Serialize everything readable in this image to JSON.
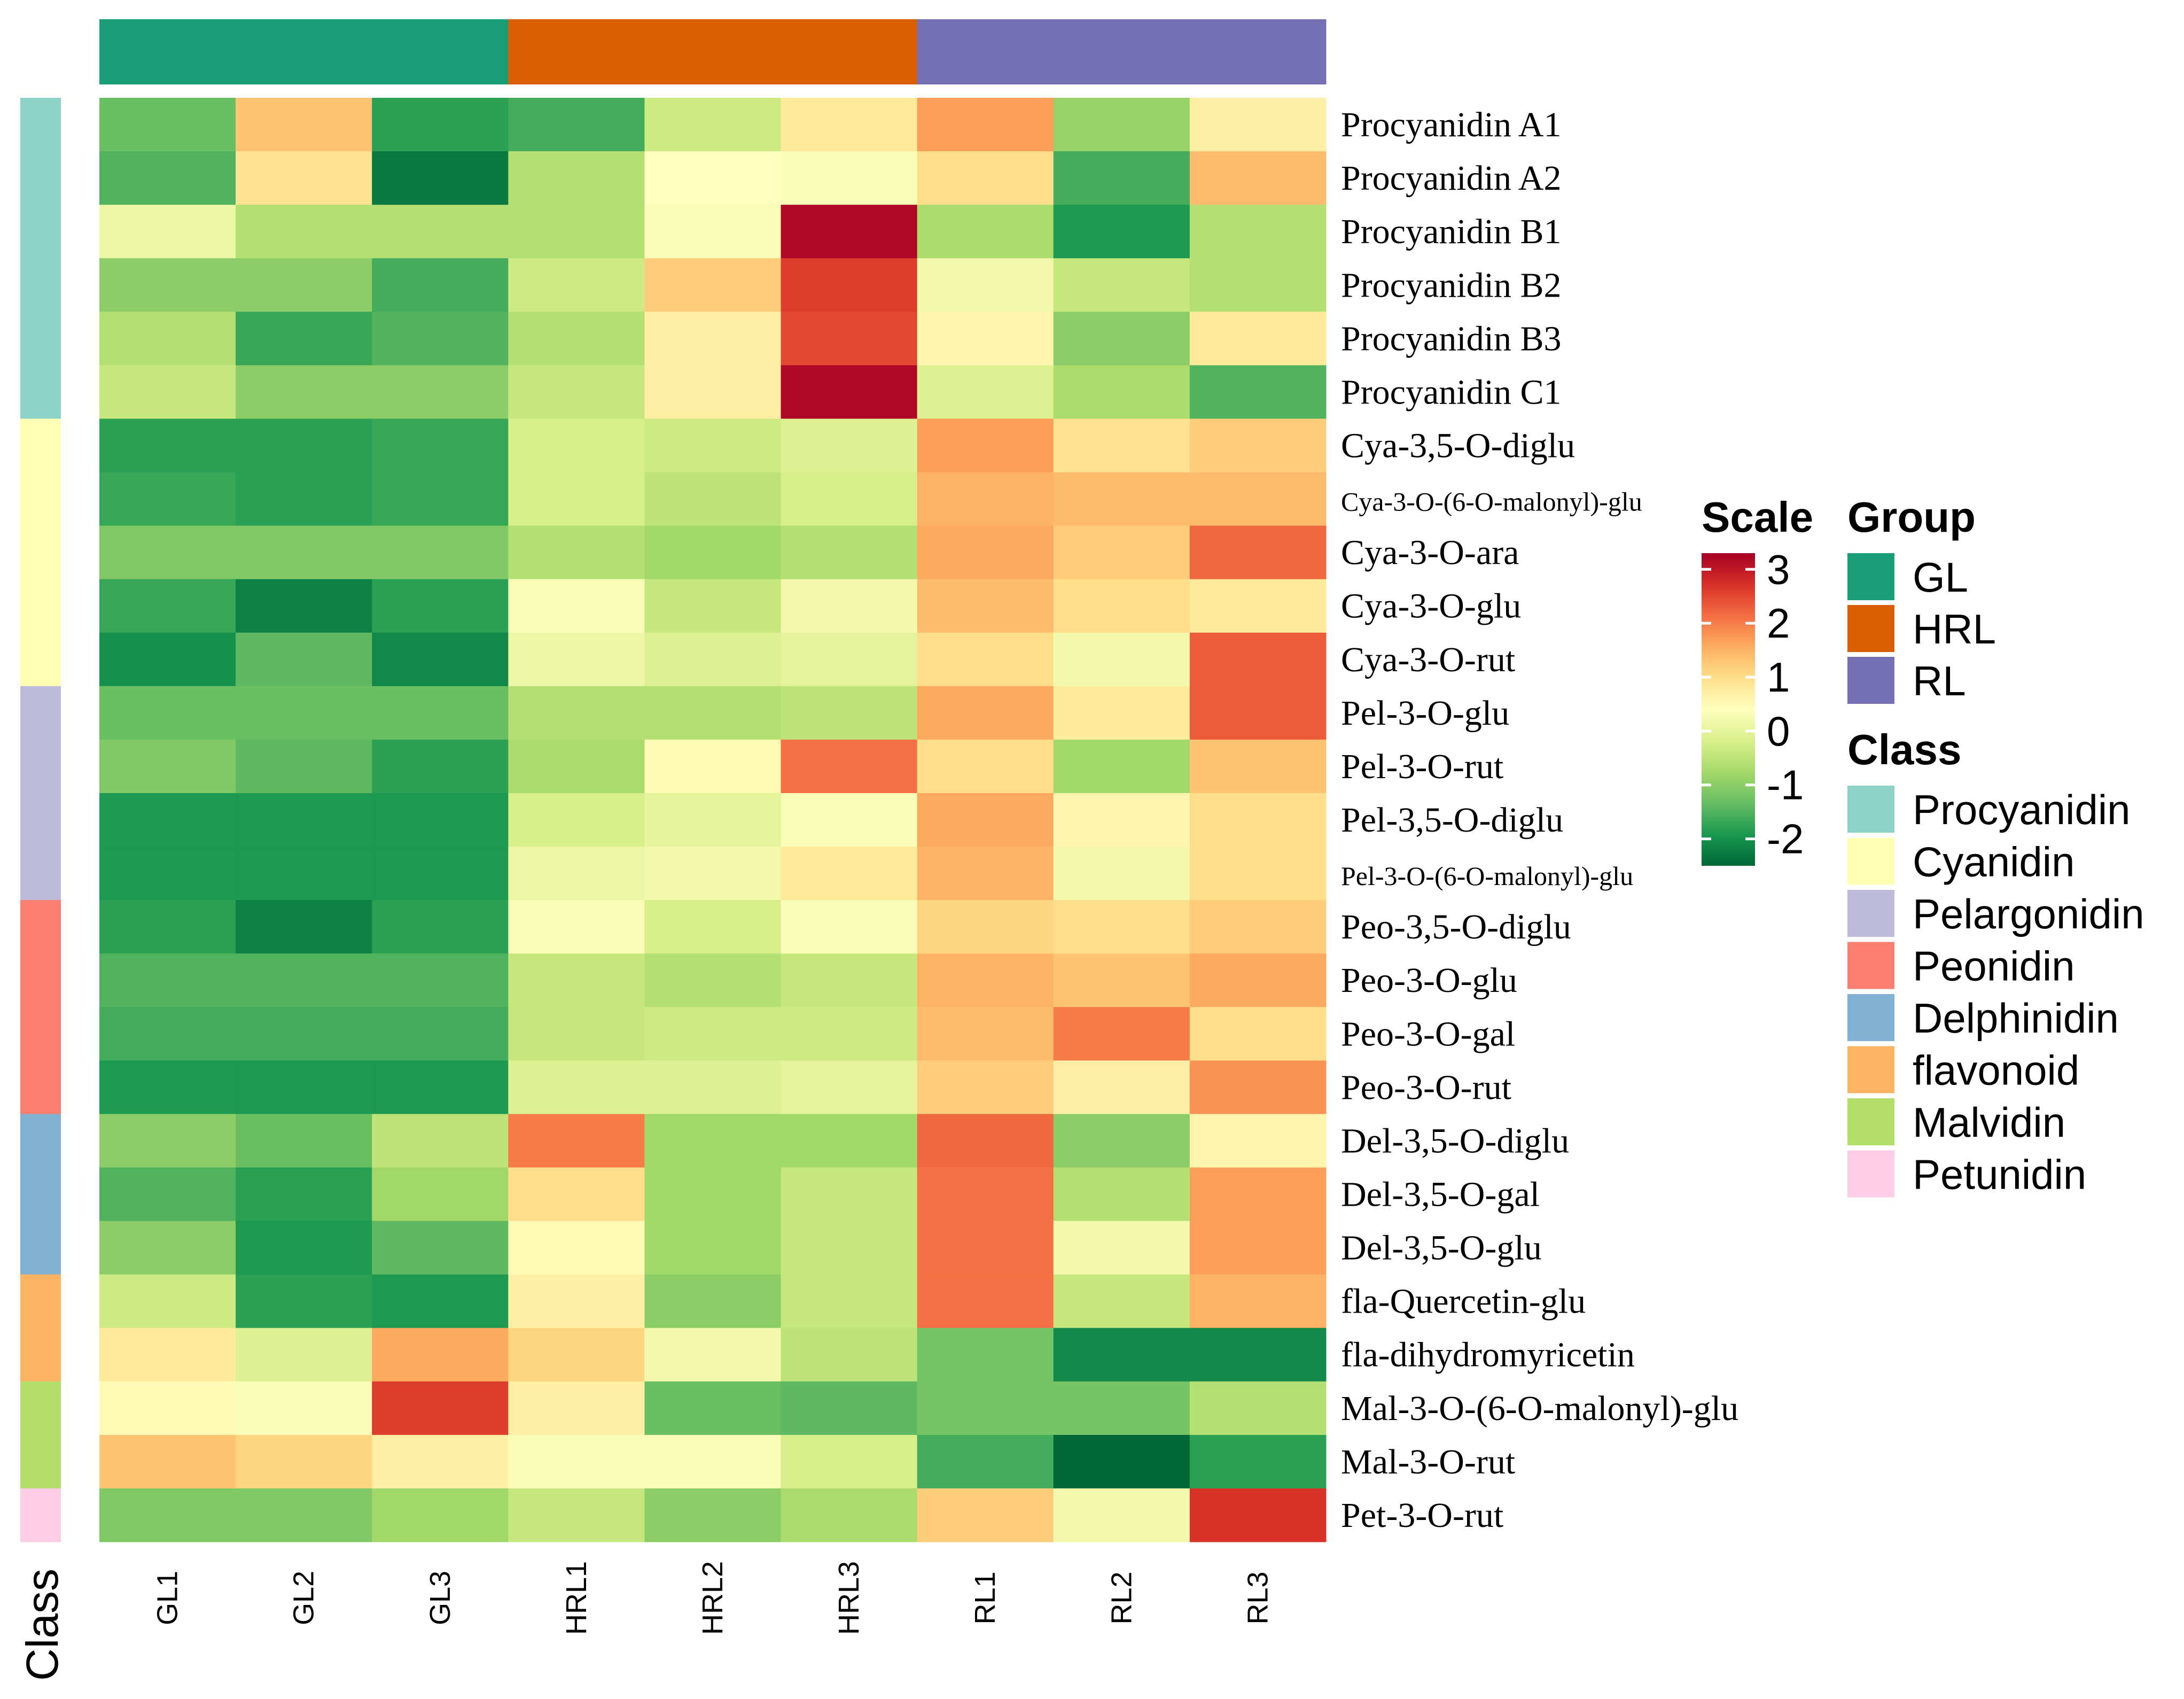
{
  "chart_data": {
    "type": "heatmap",
    "columns": [
      "GL1",
      "GL2",
      "GL3",
      "HRL1",
      "HRL2",
      "HRL3",
      "RL1",
      "RL2",
      "RL3"
    ],
    "column_groups": [
      "GL",
      "GL",
      "GL",
      "HRL",
      "HRL",
      "HRL",
      "RL",
      "RL",
      "RL"
    ],
    "rows": [
      {
        "label": "Procyanidin A1",
        "class": "Procyanidin",
        "values": [
          -1.3,
          1.3,
          -1.8,
          -1.6,
          -0.3,
          0.8,
          1.7,
          -0.9,
          0.7
        ]
      },
      {
        "label": "Procyanidin A2",
        "class": "Procyanidin",
        "values": [
          -1.5,
          0.9,
          -2.3,
          -0.6,
          0.4,
          0.3,
          1.0,
          -1.6,
          1.4
        ]
      },
      {
        "label": "Procyanidin B1",
        "class": "Procyanidin",
        "values": [
          0.1,
          -0.6,
          -0.6,
          -0.6,
          0.3,
          3.2,
          -0.7,
          -1.9,
          -0.6
        ]
      },
      {
        "label": "Procyanidin B2",
        "class": "Procyanidin",
        "values": [
          -1.0,
          -1.0,
          -1.6,
          -0.3,
          1.2,
          2.6,
          0.2,
          -0.4,
          -0.6
        ]
      },
      {
        "label": "Procyanidin B3",
        "class": "Procyanidin",
        "values": [
          -0.6,
          -1.7,
          -1.5,
          -0.6,
          0.7,
          2.5,
          0.6,
          -1.0,
          0.8
        ]
      },
      {
        "label": "Procyanidin C1",
        "class": "Procyanidin",
        "values": [
          -0.4,
          -1.0,
          -1.0,
          -0.4,
          0.7,
          3.2,
          -0.1,
          -0.7,
          -1.5
        ]
      },
      {
        "label": "Cya-3,5-O-diglu",
        "class": "Cyanidin",
        "values": [
          -1.8,
          -1.8,
          -1.7,
          -0.2,
          -0.3,
          -0.1,
          1.7,
          0.9,
          1.2
        ]
      },
      {
        "label": "Cya-3-O-(6-O-malonyl)-glu",
        "class": "Cyanidin",
        "values": [
          -1.7,
          -1.8,
          -1.7,
          -0.2,
          -0.5,
          -0.2,
          1.5,
          1.4,
          1.4
        ]
      },
      {
        "label": "Cya-3-O-ara",
        "class": "Cyanidin",
        "values": [
          -1.1,
          -1.1,
          -1.1,
          -0.6,
          -0.8,
          -0.6,
          1.6,
          1.2,
          2.2
        ]
      },
      {
        "label": "Cya-3-O-glu",
        "class": "Cyanidin",
        "values": [
          -1.7,
          -2.2,
          -1.8,
          0.3,
          -0.4,
          0.2,
          1.4,
          1.0,
          0.8
        ]
      },
      {
        "label": "Cya-3-O-rut",
        "class": "Cyanidin",
        "values": [
          -2.0,
          -1.4,
          -2.1,
          0.1,
          -0.1,
          0.0,
          1.0,
          0.2,
          2.3
        ]
      },
      {
        "label": "Pel-3-O-glu",
        "class": "Pelargonidin",
        "values": [
          -1.3,
          -1.3,
          -1.3,
          -0.6,
          -0.6,
          -0.5,
          1.6,
          0.8,
          2.3
        ]
      },
      {
        "label": "Pel-3-O-rut",
        "class": "Pelargonidin",
        "values": [
          -1.1,
          -1.4,
          -1.8,
          -0.7,
          0.5,
          2.1,
          1.0,
          -0.8,
          1.3
        ]
      },
      {
        "label": "Pel-3,5-O-diglu",
        "class": "Pelargonidin",
        "values": [
          -1.9,
          -1.9,
          -1.9,
          -0.2,
          0.0,
          0.3,
          1.6,
          0.6,
          1.0
        ]
      },
      {
        "label": "Pel-3-O-(6-O-malonyl)-glu",
        "class": "Pelargonidin",
        "values": [
          -1.9,
          -1.9,
          -1.9,
          0.1,
          0.2,
          0.8,
          1.5,
          0.2,
          1.0
        ]
      },
      {
        "label": "Peo-3,5-O-diglu",
        "class": "Peonidin",
        "values": [
          -1.8,
          -2.2,
          -1.8,
          0.3,
          -0.2,
          0.3,
          1.1,
          1.0,
          1.2
        ]
      },
      {
        "label": "Peo-3-O-glu",
        "class": "Peonidin",
        "values": [
          -1.5,
          -1.5,
          -1.5,
          -0.4,
          -0.6,
          -0.4,
          1.5,
          1.3,
          1.6
        ]
      },
      {
        "label": "Peo-3-O-gal",
        "class": "Peonidin",
        "values": [
          -1.6,
          -1.6,
          -1.6,
          -0.4,
          -0.3,
          -0.3,
          1.4,
          2.0,
          1.0
        ]
      },
      {
        "label": "Peo-3-O-rut",
        "class": "Peonidin",
        "values": [
          -1.9,
          -1.9,
          -1.9,
          -0.1,
          -0.1,
          0.0,
          1.2,
          0.7,
          1.8
        ]
      },
      {
        "label": "Del-3,5-O-diglu",
        "class": "Delphinidin",
        "values": [
          -1.0,
          -1.3,
          -0.5,
          2.0,
          -0.8,
          -0.8,
          2.2,
          -1.0,
          0.6
        ]
      },
      {
        "label": "Del-3,5-O-gal",
        "class": "Delphinidin",
        "values": [
          -1.5,
          -1.8,
          -0.8,
          1.0,
          -0.8,
          -0.4,
          2.1,
          -0.6,
          1.7
        ]
      },
      {
        "label": "Del-3,5-O-glu",
        "class": "Delphinidin",
        "values": [
          -1.0,
          -1.9,
          -1.4,
          0.5,
          -0.8,
          -0.4,
          2.1,
          0.2,
          1.7
        ]
      },
      {
        "label": "fla-Quercetin-glu",
        "class": "flavonoid",
        "values": [
          -0.3,
          -1.8,
          -1.9,
          0.7,
          -1.0,
          -0.4,
          2.1,
          -0.4,
          1.5
        ]
      },
      {
        "label": "fla-dihydromyricetin",
        "class": "flavonoid",
        "values": [
          0.8,
          -0.1,
          1.6,
          1.1,
          0.2,
          -0.5,
          -1.2,
          -2.1,
          -2.1
        ]
      },
      {
        "label": "Mal-3-O-(6-O-malonyl)-glu",
        "class": "Malvidin",
        "values": [
          0.5,
          0.3,
          2.6,
          0.7,
          -1.3,
          -1.4,
          -1.2,
          -1.2,
          -0.6
        ]
      },
      {
        "label": "Mal-3-O-rut",
        "class": "Malvidin",
        "values": [
          1.3,
          1.1,
          0.7,
          0.3,
          0.3,
          -0.2,
          -1.6,
          -2.5,
          -1.8
        ]
      },
      {
        "label": "Pet-3-O-rut",
        "class": "Petunidin",
        "values": [
          -1.1,
          -1.1,
          -0.8,
          -0.4,
          -1.0,
          -0.7,
          1.2,
          0.2,
          2.7
        ]
      }
    ],
    "scale": {
      "min": -2.5,
      "max": 3.3,
      "ticks": [
        3,
        2,
        1,
        0,
        -1,
        -2
      ]
    },
    "side_title": "Class"
  },
  "legend": {
    "scale_title": "Scale",
    "group_title": "Group",
    "class_title": "Class",
    "groups": [
      {
        "label": "GL",
        "color": "#1b9e77"
      },
      {
        "label": "HRL",
        "color": "#d95f02"
      },
      {
        "label": "RL",
        "color": "#7570b3"
      }
    ],
    "classes": [
      {
        "label": "Procyanidin",
        "color": "#8dd3c7"
      },
      {
        "label": "Cyanidin",
        "color": "#ffffb3"
      },
      {
        "label": "Pelargonidin",
        "color": "#bebada"
      },
      {
        "label": "Peonidin",
        "color": "#fb8072"
      },
      {
        "label": "Delphinidin",
        "color": "#80b1d3"
      },
      {
        "label": "flavonoid",
        "color": "#fdb462"
      },
      {
        "label": "Malvidin",
        "color": "#b3de69"
      },
      {
        "label": "Petunidin",
        "color": "#fccde5"
      }
    ]
  }
}
